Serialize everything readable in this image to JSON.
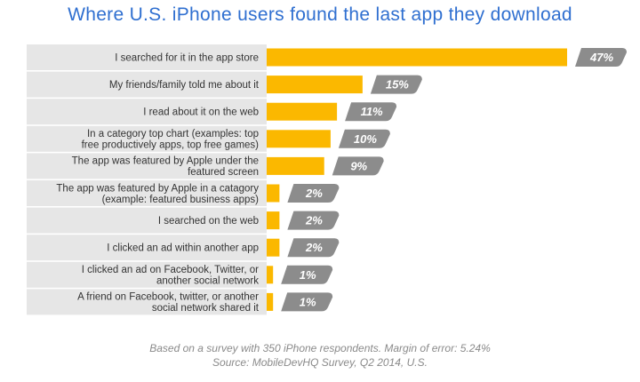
{
  "colors": {
    "title": "#2f6fd0",
    "bar": "#fbb800",
    "label_band": "#e6e6e6",
    "value_tag": "#8c8c8c",
    "value_text": "#ffffff",
    "footer_text": "#8a8a8a"
  },
  "chart_data": {
    "type": "bar",
    "orientation": "horizontal",
    "title": "Where U.S. iPhone users found the last app they download",
    "value_suffix": "%",
    "categories": [
      [
        "I searched for it in the app store"
      ],
      [
        "My friends/family told me about it"
      ],
      [
        "I read about it on the web"
      ],
      [
        "In a category top chart (examples: top",
        "free productively apps, top free games)"
      ],
      [
        "The app was featured by Apple under the",
        "featured screen"
      ],
      [
        "The app was featured by Apple in a catagory",
        "(example: featured business apps)"
      ],
      [
        "I searched on the web"
      ],
      [
        "I clicked an ad within another app"
      ],
      [
        "I clicked an ad on Facebook, Twitter, or",
        "another social network"
      ],
      [
        "A friend on Facebook, twitter, or another",
        "social network shared it"
      ]
    ],
    "values": [
      47,
      15,
      11,
      10,
      9,
      2,
      2,
      2,
      1,
      1
    ],
    "value_labels": [
      "47%",
      "15%",
      "11%",
      "10%",
      "9%",
      "2%",
      "2%",
      "2%",
      "1%",
      "1%"
    ],
    "grid": false,
    "legend": "none"
  },
  "footer": {
    "line1": "Based on a survey with 350 iPhone respondents. Margin of error: 5.24%",
    "line2": "Source: MobileDevHQ Survey, Q2 2014, U.S."
  }
}
